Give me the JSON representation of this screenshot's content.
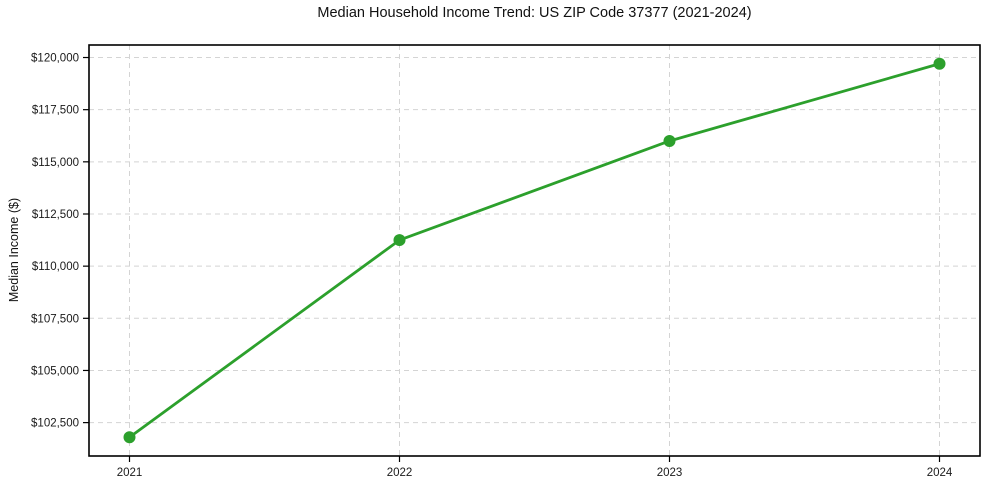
{
  "chart_data": {
    "type": "line",
    "title": "Median Household Income Trend: US ZIP Code 37377 (2021-2024)",
    "xlabel": "",
    "ylabel": "Median Income ($)",
    "x": [
      2021,
      2022,
      2023,
      2024
    ],
    "series": [
      {
        "name": "Median Household Income",
        "values": [
          101800,
          111250,
          116000,
          119700
        ]
      }
    ],
    "x_tick_labels": [
      "2021",
      "2022",
      "2023",
      "2024"
    ],
    "y_ticks": [
      {
        "value": 102500,
        "label": "$102,500"
      },
      {
        "value": 105000,
        "label": "$105,000"
      },
      {
        "value": 107500,
        "label": "$107,500"
      },
      {
        "value": 110000,
        "label": "$110,000"
      },
      {
        "value": 112500,
        "label": "$112,500"
      },
      {
        "value": 115000,
        "label": "$115,000"
      },
      {
        "value": 117500,
        "label": "$117,500"
      },
      {
        "value": 120000,
        "label": "$120,000"
      }
    ],
    "xlim": [
      2020.85,
      2024.15
    ],
    "ylim": [
      100900,
      120600
    ],
    "grid": "dashed-both-axes",
    "legend_position": "none",
    "line_color": "#2ca02c",
    "marker": "circle"
  },
  "colors": {
    "background": "#ffffff",
    "grid": "#d4d4d4",
    "spine": "#000000",
    "tick": "#000000",
    "text": "#1a1a1a",
    "line": "#2ca02c",
    "marker_fill": "#2ca02c"
  }
}
